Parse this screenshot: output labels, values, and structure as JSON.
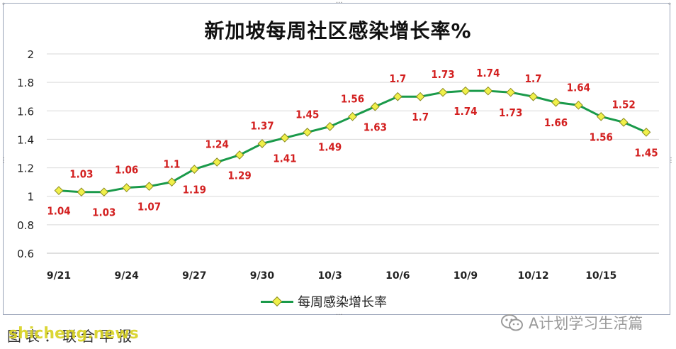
{
  "chart_data": {
    "type": "line",
    "title": "新加坡每周社区感染增长率%",
    "x": [
      "9/21",
      "9/22",
      "9/23",
      "9/24",
      "9/25",
      "9/26",
      "9/27",
      "9/28",
      "9/29",
      "9/30",
      "10/1",
      "10/2",
      "10/3",
      "10/4",
      "10/5",
      "10/6",
      "10/7",
      "10/8",
      "10/9",
      "10/10",
      "10/11",
      "10/12",
      "10/13",
      "10/14",
      "10/15",
      "10/16",
      "10/17"
    ],
    "x_tick_labels": [
      "9/21",
      "9/24",
      "9/27",
      "9/30",
      "10/3",
      "10/6",
      "10/9",
      "10/12",
      "10/15"
    ],
    "series": [
      {
        "name": "每周感染增长率",
        "values": [
          1.04,
          1.03,
          1.03,
          1.06,
          1.07,
          1.1,
          1.19,
          1.24,
          1.29,
          1.37,
          1.41,
          1.45,
          1.49,
          1.56,
          1.63,
          1.7,
          1.7,
          1.73,
          1.74,
          1.74,
          1.73,
          1.7,
          1.66,
          1.64,
          1.56,
          1.52,
          1.45
        ],
        "color": "#1a9a4a",
        "marker_color": "#f0f04a",
        "data_labels": [
          "1.04",
          "1.03",
          "1.03",
          "1.06",
          "1.07",
          "1.1",
          "1.19",
          "1.24",
          "1.29",
          "1.37",
          "1.41",
          "1.45",
          "1.49",
          "1.56",
          "1.63",
          "1.7",
          "1.7",
          "1.73",
          "1.74",
          "1.74",
          "1.73",
          "1.7",
          "1.66",
          "1.64",
          "1.56",
          "1.52",
          "1.45"
        ]
      }
    ],
    "ylim": [
      0.6,
      2
    ],
    "yticks": [
      "0.6",
      "0.8",
      "1",
      "1.2",
      "1.4",
      "1.6",
      "1.8",
      "2"
    ],
    "grid": "horizontal",
    "legend": "bottom",
    "label_color": "#d32020"
  },
  "legend_label": "每周感染增长率",
  "watermark": "A计划学习生活篇",
  "source": "图表：联合早报",
  "site": "shicheng.news"
}
